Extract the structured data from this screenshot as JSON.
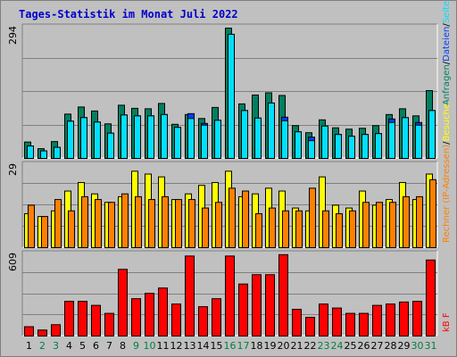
{
  "window": {
    "title": "Tages-Statistik im Monat Juli 2022"
  },
  "colors": {
    "background": "#c0c0c0",
    "grid": "#808080",
    "anfragen": "#008060",
    "dateien": "#0040ff",
    "seiten": "#00e0ff",
    "besuche": "#ffff00",
    "rechner": "#ff8000",
    "kbf": "#ff0000",
    "weekday": "#000000",
    "weekend": "#008040"
  },
  "chart_data": [
    {
      "type": "bar",
      "panel": "top",
      "ytick": "294",
      "ylim": [
        0,
        294
      ],
      "categories": [
        "1",
        "2",
        "3",
        "4",
        "5",
        "6",
        "7",
        "8",
        "9",
        "10",
        "11",
        "12",
        "13",
        "14",
        "15",
        "16",
        "17",
        "18",
        "19",
        "20",
        "21",
        "22",
        "23",
        "24",
        "25",
        "26",
        "27",
        "28",
        "29",
        "30",
        "31"
      ],
      "weekend_days": [
        "2",
        "3",
        "9",
        "10",
        "16",
        "17",
        "23",
        "24",
        "30",
        "31"
      ],
      "legend": [
        {
          "text": "Anfragen",
          "color": "#008060"
        },
        {
          "text": "/",
          "color": "#000000"
        },
        {
          "text": "Dateien",
          "color": "#0040ff"
        },
        {
          "text": "/",
          "color": "#000000"
        },
        {
          "text": "Seiten",
          "color": "#00e0ff"
        }
      ],
      "series": [
        {
          "name": "Anfragen",
          "values": [
            37,
            22,
            38,
            100,
            116,
            107,
            78,
            120,
            113,
            112,
            124,
            77,
            99,
            90,
            115,
            294,
            123,
            143,
            148,
            142,
            74,
            58,
            87,
            69,
            66,
            68,
            74,
            99,
            112,
            96,
            153
          ]
        },
        {
          "name": "Dateien",
          "values": [
            28,
            17,
            25,
            84,
            92,
            82,
            57,
            98,
            96,
            96,
            99,
            70,
            101,
            79,
            86,
            280,
            108,
            91,
            125,
            93,
            60,
            48,
            73,
            54,
            50,
            54,
            56,
            89,
            92,
            81,
            108
          ]
        },
        {
          "name": "Seiten",
          "values": [
            28,
            17,
            25,
            84,
            92,
            82,
            57,
            98,
            96,
            96,
            99,
            70,
            90,
            75,
            86,
            280,
            108,
            91,
            125,
            85,
            60,
            40,
            73,
            54,
            50,
            54,
            56,
            81,
            92,
            75,
            108
          ]
        }
      ]
    },
    {
      "type": "bar",
      "panel": "middle",
      "ytick": "29",
      "ylim": [
        0,
        29
      ],
      "categories": [
        "1",
        "2",
        "3",
        "4",
        "5",
        "6",
        "7",
        "8",
        "9",
        "10",
        "11",
        "12",
        "13",
        "14",
        "15",
        "16",
        "17",
        "18",
        "19",
        "20",
        "21",
        "22",
        "23",
        "24",
        "25",
        "26",
        "27",
        "28",
        "29",
        "30",
        "31"
      ],
      "legend": [
        {
          "text": "Rechner (IP-Adressen)",
          "color": "#ff8000"
        },
        {
          "text": "/",
          "color": "#000000"
        },
        {
          "text": "Besuche",
          "color": "#ffff00"
        }
      ],
      "series": [
        {
          "name": "Rechner (IP-Adressen)",
          "values": [
            15,
            11,
            17,
            13,
            18,
            17,
            16,
            19,
            18,
            17,
            18,
            17,
            17,
            14,
            16,
            21,
            20,
            12,
            14,
            13,
            13,
            21,
            13,
            12,
            13,
            16,
            16,
            16,
            18,
            18,
            24
          ]
        },
        {
          "name": "Besuche",
          "values": [
            12,
            11,
            13,
            20,
            23,
            19,
            16,
            18,
            27,
            26,
            25,
            17,
            19,
            22,
            23,
            27,
            18,
            19,
            21,
            20,
            14,
            13,
            25,
            15,
            14,
            20,
            15,
            17,
            23,
            17,
            26
          ]
        }
      ]
    },
    {
      "type": "bar",
      "panel": "bottom",
      "ytick": "609",
      "ylim": [
        0,
        609
      ],
      "categories": [
        "1",
        "2",
        "3",
        "4",
        "5",
        "6",
        "7",
        "8",
        "9",
        "10",
        "11",
        "12",
        "13",
        "14",
        "15",
        "16",
        "17",
        "18",
        "19",
        "20",
        "21",
        "22",
        "23",
        "24",
        "25",
        "26",
        "27",
        "28",
        "29",
        "30",
        "31"
      ],
      "legend": [
        {
          "text": "kB F",
          "color": "#ff0000"
        }
      ],
      "series": [
        {
          "name": "kB F",
          "values": [
            70,
            45,
            85,
            260,
            260,
            230,
            170,
            500,
            280,
            320,
            360,
            240,
            600,
            220,
            280,
            600,
            390,
            460,
            460,
            610,
            200,
            140,
            240,
            210,
            170,
            170,
            230,
            240,
            255,
            260,
            570
          ]
        }
      ]
    }
  ]
}
